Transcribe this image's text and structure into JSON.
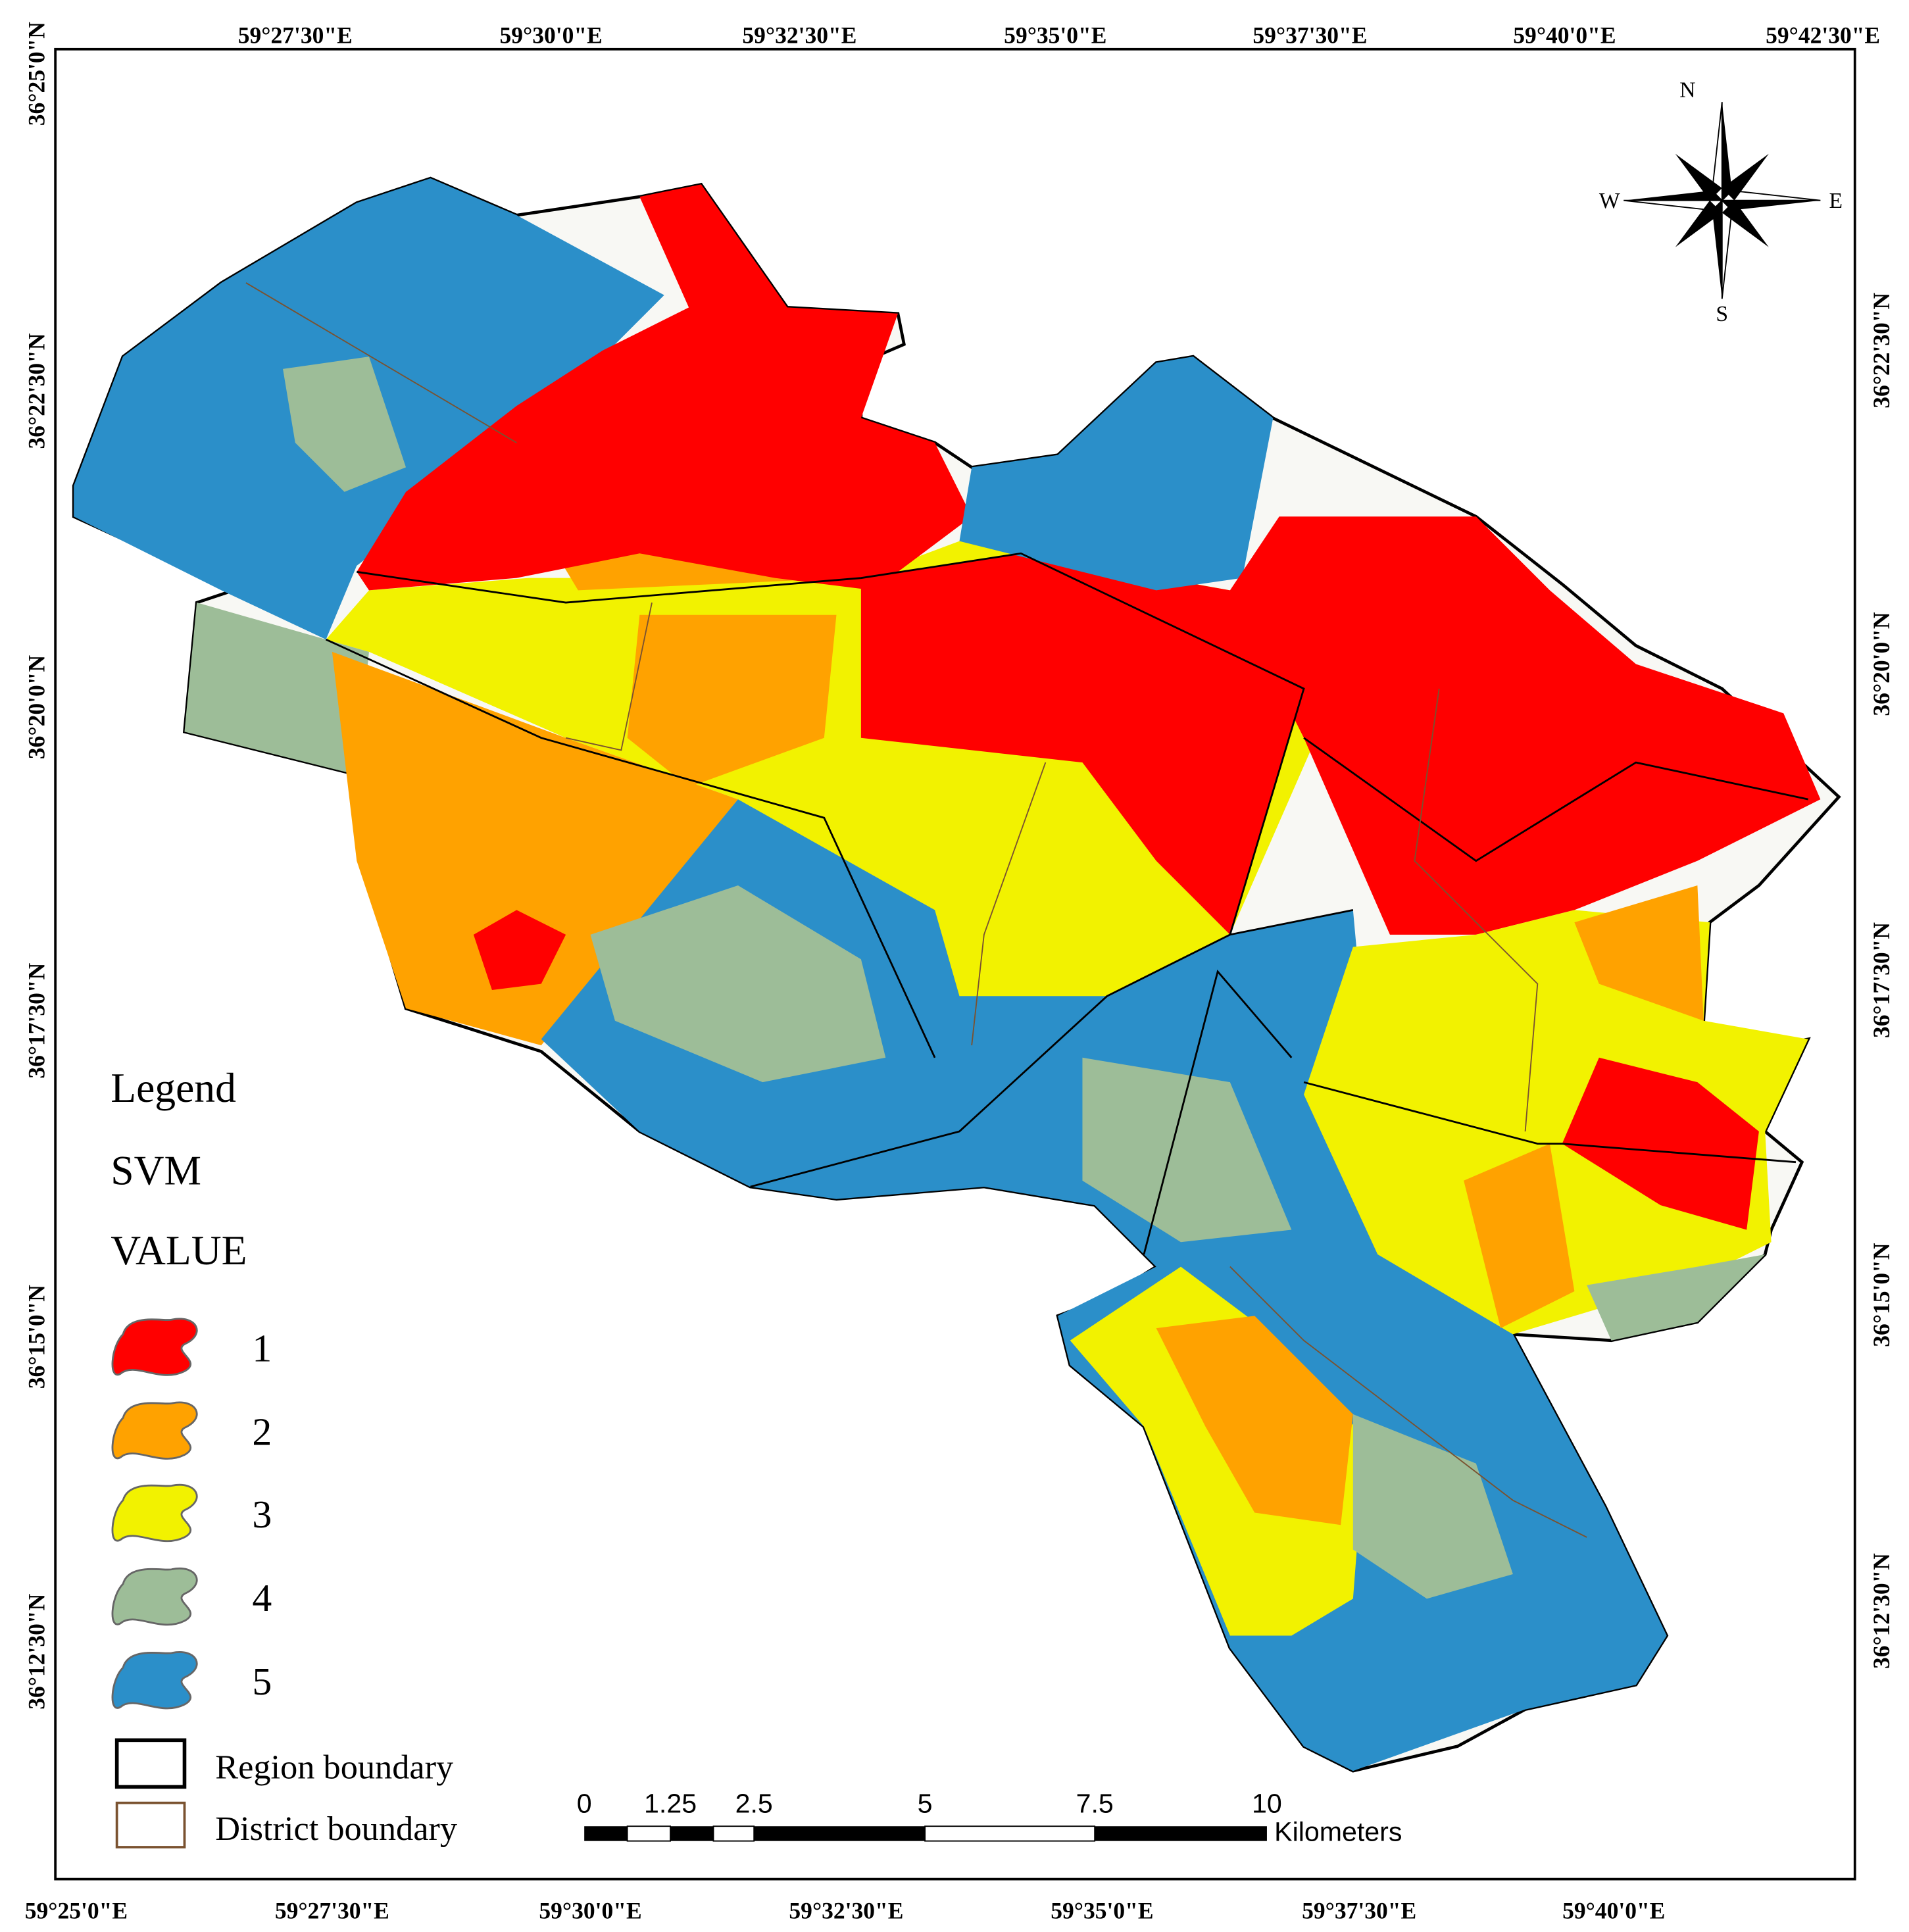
{
  "map": {
    "top_labels": [
      "59°27'30\"E",
      "59°30'0\"E",
      "59°32'30\"E",
      "59°35'0\"E",
      "59°37'30\"E",
      "59°40'0\"E",
      "59°42'30\"E"
    ],
    "bottom_labels": [
      "59°25'0\"E",
      "59°27'30\"E",
      "59°30'0\"E",
      "59°32'30\"E",
      "59°35'0\"E",
      "59°37'30\"E",
      "59°40'0\"E"
    ],
    "left_labels": [
      "36°25'0\"N",
      "36°22'30\"N",
      "36°20'0\"N",
      "36°17'30\"N",
      "36°15'0\"N",
      "36°12'30\"N"
    ],
    "right_labels": [
      "36°22'30\"N",
      "36°20'0\"N",
      "36°17'30\"N",
      "36°15'0\"N",
      "36°12'30\"N"
    ],
    "compass": {
      "north": "N",
      "south": "S",
      "east": "E",
      "west": "W"
    },
    "legend": {
      "title": "Legend",
      "subtitle": "SVM",
      "field": "VALUE",
      "items": [
        {
          "label": "1",
          "color": "#ff0000"
        },
        {
          "label": "2",
          "color": "#ffa200"
        },
        {
          "label": "3",
          "color": "#f2f200"
        },
        {
          "label": "4",
          "color": "#9dbd98"
        },
        {
          "label": "5",
          "color": "#2b8fc9"
        }
      ],
      "boundaries": [
        {
          "label": "Region boundary",
          "color": "#000000"
        },
        {
          "label": "District boundary",
          "color": "#7a5230"
        }
      ]
    },
    "scale_bar": {
      "labels": [
        "0",
        "1.25",
        "2.5",
        "5",
        "7.5",
        "10"
      ],
      "unit": "Kilometers"
    }
  }
}
